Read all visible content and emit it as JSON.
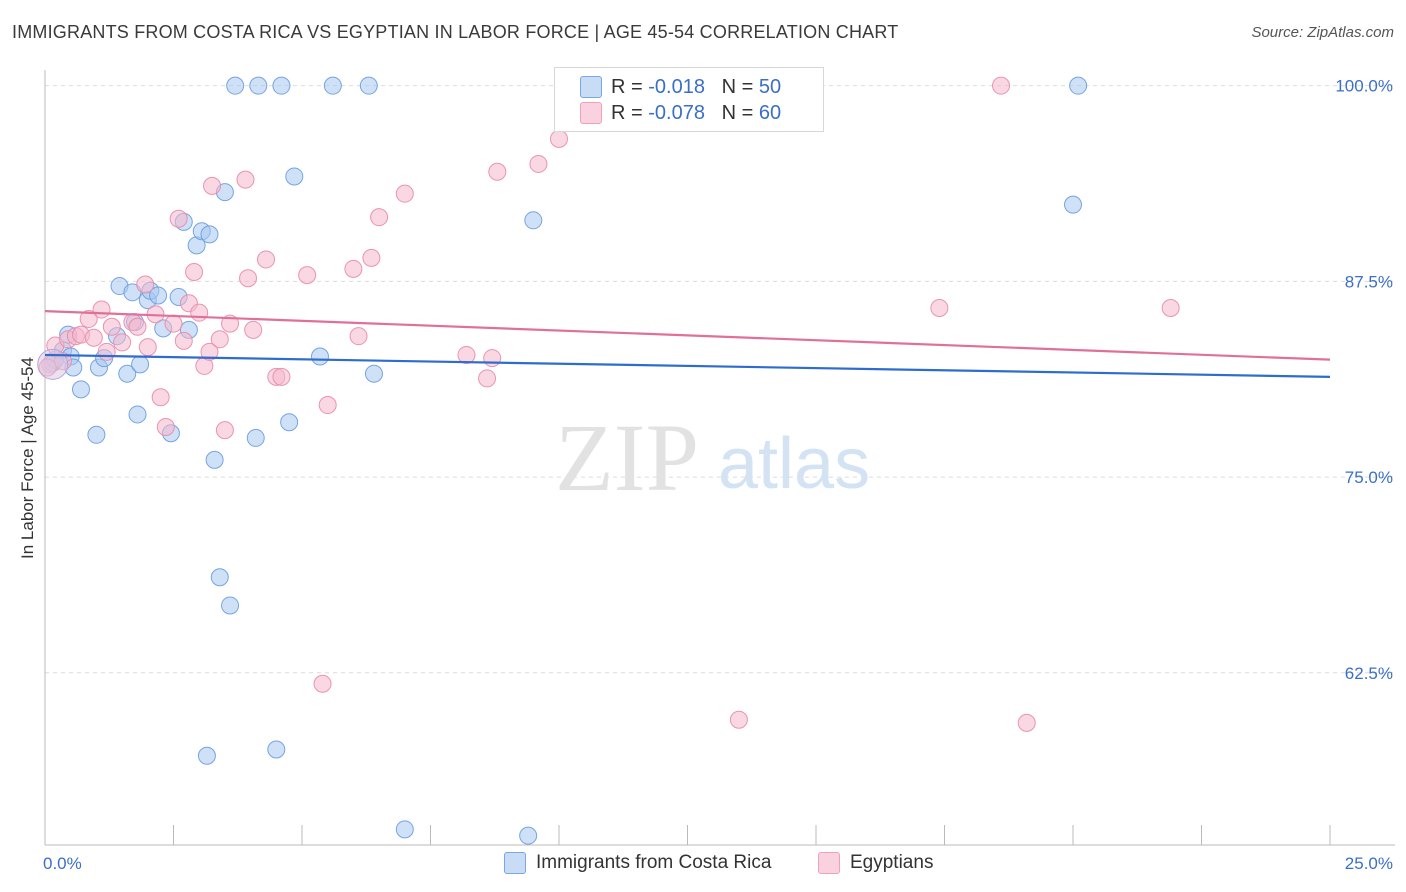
{
  "title": "IMMIGRANTS FROM COSTA RICA VS EGYPTIAN IN LABOR FORCE | AGE 45-54 CORRELATION CHART",
  "source": "Source: ZipAtlas.com",
  "watermark": {
    "zip": "ZIP",
    "atlas": "atlas"
  },
  "stats": [
    {
      "r_label": "R = ",
      "r_value": "-0.018",
      "n_label": "N = ",
      "n_value": "50",
      "color": "#a8c8f0"
    },
    {
      "r_label": "R = ",
      "r_value": "-0.078",
      "n_label": "N = ",
      "n_value": "60",
      "color": "#f5b8cc"
    }
  ],
  "legend": [
    {
      "label": "Immigrants from Costa Rica",
      "color": "#a8c8f0"
    },
    {
      "label": "Egyptians",
      "color": "#f5b8cc"
    }
  ],
  "chart_data": {
    "type": "scatter",
    "title": "IMMIGRANTS FROM COSTA RICA VS EGYPTIAN IN LABOR FORCE | AGE 45-54 CORRELATION CHART",
    "xlabel": "",
    "ylabel": "In Labor Force | Age 45-54",
    "xlim": [
      0,
      25
    ],
    "ylim": [
      51.5,
      101
    ],
    "x_tick_labels": [
      "0.0%",
      "25.0%"
    ],
    "y_ticks": [
      100,
      87.5,
      75,
      62.5
    ],
    "y_tick_labels": [
      "100.0%",
      "87.5%",
      "75.0%",
      "62.5%"
    ],
    "grid": true,
    "series": [
      {
        "name": "Immigrants from Costa Rica",
        "color": "#a8c8f0",
        "stroke": "#6a9be0",
        "trend": {
          "x": [
            0,
            25
          ],
          "y": [
            82.8,
            81.4
          ],
          "color": "#2f6ccf"
        },
        "points": [
          [
            0.15,
            82.3
          ],
          [
            0.2,
            82.5
          ],
          [
            0.35,
            83.1
          ],
          [
            0.45,
            84.1
          ],
          [
            0.5,
            82.7
          ],
          [
            0.55,
            82.0
          ],
          [
            0.7,
            80.6
          ],
          [
            1.0,
            77.7
          ],
          [
            1.05,
            82.0
          ],
          [
            1.15,
            82.6
          ],
          [
            1.4,
            84.0
          ],
          [
            1.45,
            87.2
          ],
          [
            1.6,
            81.6
          ],
          [
            1.7,
            86.8
          ],
          [
            1.75,
            84.9
          ],
          [
            1.8,
            79.0
          ],
          [
            1.85,
            82.2
          ],
          [
            2.0,
            86.3
          ],
          [
            2.05,
            86.9
          ],
          [
            2.2,
            86.6
          ],
          [
            2.3,
            84.5
          ],
          [
            2.45,
            77.8
          ],
          [
            2.6,
            86.5
          ],
          [
            2.7,
            91.3
          ],
          [
            2.8,
            84.4
          ],
          [
            2.95,
            89.8
          ],
          [
            3.05,
            90.7
          ],
          [
            3.15,
            57.2
          ],
          [
            3.2,
            90.5
          ],
          [
            3.3,
            76.1
          ],
          [
            3.4,
            68.6
          ],
          [
            3.5,
            93.2
          ],
          [
            3.6,
            66.8
          ],
          [
            3.7,
            100.0
          ],
          [
            4.1,
            77.5
          ],
          [
            4.15,
            100.0
          ],
          [
            4.5,
            57.6
          ],
          [
            4.6,
            100.0
          ],
          [
            4.75,
            78.5
          ],
          [
            4.85,
            94.2
          ],
          [
            5.35,
            82.7
          ],
          [
            5.6,
            100.0
          ],
          [
            6.3,
            100.0
          ],
          [
            6.4,
            81.6
          ],
          [
            7.0,
            52.5
          ],
          [
            9.4,
            52.1
          ],
          [
            9.5,
            91.4
          ],
          [
            10.3,
            100.0
          ],
          [
            20.0,
            92.4
          ],
          [
            20.1,
            100.0
          ]
        ]
      },
      {
        "name": "Egyptians",
        "color": "#f5b8cc",
        "stroke": "#e88aa8",
        "trend": {
          "x": [
            0,
            25
          ],
          "y": [
            85.6,
            82.5
          ],
          "color": "#e0709a"
        },
        "points": [
          [
            0.1,
            82.2
          ],
          [
            0.2,
            83.4
          ],
          [
            0.35,
            82.4
          ],
          [
            0.45,
            83.8
          ],
          [
            0.6,
            84.0
          ],
          [
            0.7,
            84.1
          ],
          [
            0.85,
            85.1
          ],
          [
            0.95,
            83.9
          ],
          [
            1.1,
            85.7
          ],
          [
            1.2,
            83.0
          ],
          [
            1.3,
            84.6
          ],
          [
            1.5,
            83.6
          ],
          [
            1.7,
            84.9
          ],
          [
            1.8,
            84.6
          ],
          [
            1.95,
            87.3
          ],
          [
            2.0,
            83.3
          ],
          [
            2.15,
            85.4
          ],
          [
            2.25,
            80.1
          ],
          [
            2.35,
            78.2
          ],
          [
            2.5,
            84.8
          ],
          [
            2.6,
            91.5
          ],
          [
            2.7,
            83.7
          ],
          [
            2.8,
            86.1
          ],
          [
            2.9,
            88.1
          ],
          [
            3.0,
            85.5
          ],
          [
            3.1,
            82.1
          ],
          [
            3.2,
            83.0
          ],
          [
            3.25,
            93.6
          ],
          [
            3.4,
            83.8
          ],
          [
            3.5,
            78.0
          ],
          [
            3.6,
            84.8
          ],
          [
            3.9,
            94.0
          ],
          [
            3.95,
            87.7
          ],
          [
            4.05,
            84.4
          ],
          [
            4.3,
            88.9
          ],
          [
            4.5,
            81.4
          ],
          [
            4.6,
            81.4
          ],
          [
            5.1,
            87.9
          ],
          [
            5.4,
            61.8
          ],
          [
            5.5,
            79.6
          ],
          [
            6.0,
            88.3
          ],
          [
            6.1,
            84.0
          ],
          [
            6.35,
            89.0
          ],
          [
            6.5,
            91.6
          ],
          [
            7.0,
            93.1
          ],
          [
            8.2,
            82.8
          ],
          [
            8.6,
            81.3
          ],
          [
            8.7,
            82.6
          ],
          [
            8.8,
            94.5
          ],
          [
            9.6,
            95.0
          ],
          [
            10.0,
            96.6
          ],
          [
            10.5,
            100.0
          ],
          [
            11.5,
            100.0
          ],
          [
            13.5,
            59.5
          ],
          [
            14.0,
            98.0
          ],
          [
            17.4,
            85.8
          ],
          [
            18.6,
            100.0
          ],
          [
            19.1,
            59.3
          ],
          [
            21.9,
            85.8
          ],
          [
            0.05,
            82.0
          ]
        ]
      }
    ]
  }
}
